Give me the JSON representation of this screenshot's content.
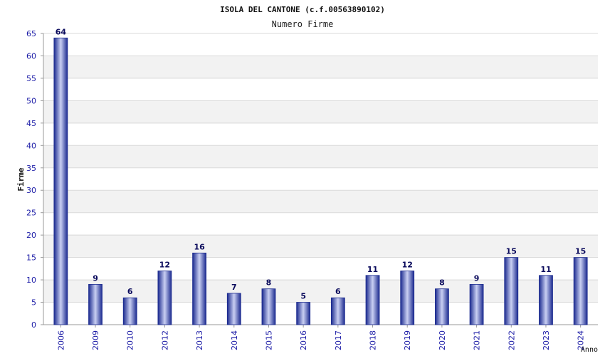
{
  "chart_data": {
    "type": "bar",
    "title": "ISOLA DEL CANTONE (c.f.00563890102)",
    "subtitle": "Numero Firme",
    "xlabel": "Anno",
    "ylabel": "Firme",
    "categories": [
      "2006",
      "2009",
      "2010",
      "2012",
      "2013",
      "2014",
      "2015",
      "2016",
      "2017",
      "2018",
      "2019",
      "2020",
      "2021",
      "2022",
      "2023",
      "2024"
    ],
    "values": [
      64,
      9,
      6,
      12,
      16,
      7,
      8,
      5,
      6,
      11,
      12,
      8,
      9,
      15,
      11,
      15
    ],
    "ylim": [
      0,
      65
    ],
    "yticks": [
      "0",
      "5",
      "10",
      "15",
      "20",
      "25",
      "30",
      "35",
      "40",
      "45",
      "50",
      "55",
      "60",
      "65"
    ],
    "grid": true,
    "band_colors": [
      "#ffffff",
      "#f2f2f2"
    ],
    "bar_color_dark": "#1b2a8f",
    "bar_color_light": "#c9cff2",
    "tick_color": "#1a1aa6",
    "value_label_color": "#0a0a5c"
  }
}
